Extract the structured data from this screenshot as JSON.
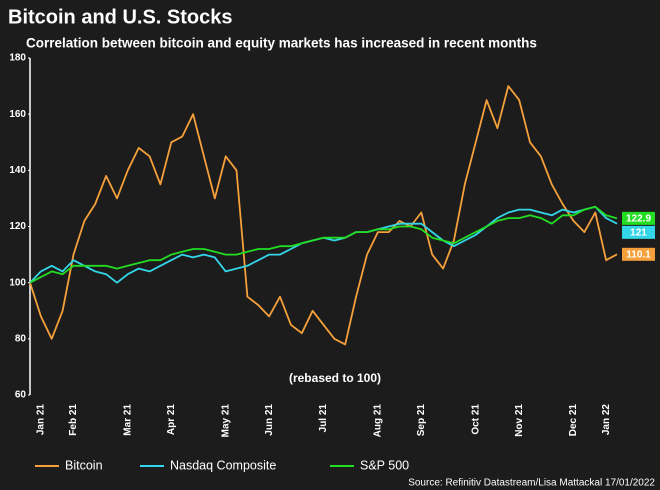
{
  "chart_data": {
    "type": "line",
    "title": "Bitcoin and U.S. Stocks",
    "subtitle": "Correlation between bitcoin and equity markets has increased in recent months",
    "annotation": "(rebased to 100)",
    "source": "Source: Refinitiv Datastream/Lisa Mattackal 17/01/2022",
    "categories": [
      null,
      "Jan 21",
      null,
      null,
      "Feb 21",
      null,
      null,
      null,
      null,
      "Mar 21",
      null,
      null,
      null,
      "Apr 21",
      null,
      null,
      null,
      null,
      "May 21",
      null,
      null,
      null,
      "Jun 21",
      null,
      null,
      null,
      null,
      "Jul 21",
      null,
      null,
      null,
      null,
      "Aug 21",
      null,
      null,
      null,
      "Sep 21",
      null,
      null,
      null,
      null,
      "Oct 21",
      null,
      null,
      null,
      "Nov 21",
      null,
      null,
      null,
      null,
      "Dec 21",
      null,
      null,
      "Jan 22",
      null
    ],
    "series": [
      {
        "name": "Bitcoin",
        "color": "#f5a03a",
        "label_text_color": "#1c1c1c",
        "values": [
          100,
          88,
          80,
          90,
          110,
          122,
          128,
          138,
          130,
          140,
          148,
          145,
          135,
          150,
          152,
          160,
          145,
          130,
          145,
          140,
          95,
          92,
          88,
          95,
          85,
          82,
          90,
          85,
          80,
          78,
          95,
          110,
          118,
          118,
          122,
          120,
          125,
          110,
          105,
          115,
          135,
          150,
          165,
          155,
          170,
          165,
          150,
          145,
          135,
          128,
          122,
          118,
          125,
          108,
          110.1
        ]
      },
      {
        "name": "Nasdaq Composite",
        "color": "#33d6e8",
        "label_text_color": "#1c1c1c",
        "values": [
          100,
          104,
          106,
          104,
          108,
          106,
          104,
          103,
          100,
          103,
          105,
          104,
          106,
          108,
          110,
          109,
          110,
          109,
          104,
          105,
          106,
          108,
          110,
          110,
          112,
          114,
          115,
          116,
          115,
          116,
          118,
          118,
          119,
          120,
          121,
          121,
          121,
          118,
          115,
          113,
          115,
          117,
          120,
          123,
          125,
          126,
          126,
          125,
          124,
          126,
          125,
          126,
          127,
          123,
          121.0
        ]
      },
      {
        "name": "S&P 500",
        "color": "#22dd22",
        "label_text_color": "#1c1c1c",
        "values": [
          100,
          102,
          104,
          103,
          106,
          106,
          106,
          106,
          105,
          106,
          107,
          108,
          108,
          110,
          111,
          112,
          112,
          111,
          110,
          110,
          111,
          112,
          112,
          113,
          113,
          114,
          115,
          116,
          116,
          116,
          118,
          118,
          119,
          119,
          120,
          120,
          119,
          116,
          115,
          114,
          116,
          118,
          120,
          122,
          123,
          123,
          124,
          123,
          121,
          124,
          124,
          126,
          127,
          124,
          122.9
        ]
      }
    ],
    "ylim": [
      60,
      180
    ],
    "yticks": [
      60,
      80,
      100,
      120,
      140,
      160,
      180
    ]
  }
}
